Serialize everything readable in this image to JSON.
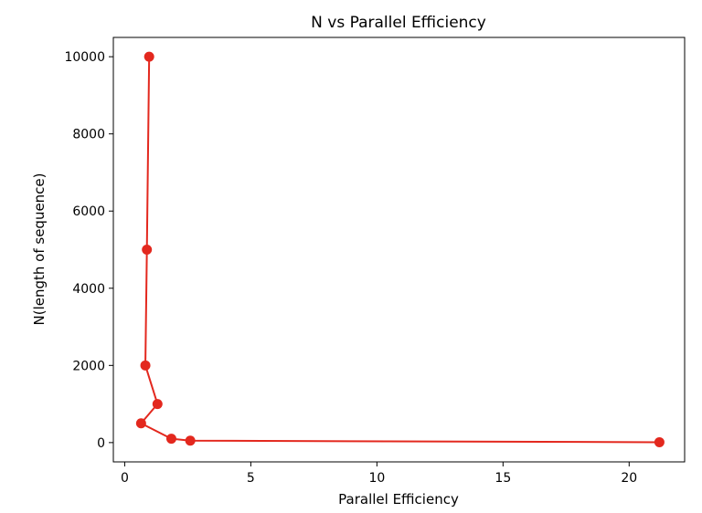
{
  "chart_data": {
    "type": "line",
    "title": "N vs Parallel Efficiency",
    "xlabel": "Parallel Efficiency",
    "ylabel": "N(length of sequence)",
    "xlim": [
      -0.45,
      22.2
    ],
    "ylim": [
      -500,
      10500
    ],
    "xticks": [
      0,
      5,
      10,
      15,
      20
    ],
    "yticks": [
      0,
      2000,
      4000,
      6000,
      8000,
      10000
    ],
    "grid": false,
    "series": [
      {
        "color": "#e3281e",
        "marker": "circle",
        "points": [
          {
            "x": 21.2,
            "y": 10
          },
          {
            "x": 2.6,
            "y": 50
          },
          {
            "x": 1.85,
            "y": 100
          },
          {
            "x": 0.65,
            "y": 500
          },
          {
            "x": 1.3,
            "y": 1000
          },
          {
            "x": 0.82,
            "y": 2000
          },
          {
            "x": 0.88,
            "y": 5000
          },
          {
            "x": 0.97,
            "y": 10000
          }
        ]
      }
    ]
  }
}
